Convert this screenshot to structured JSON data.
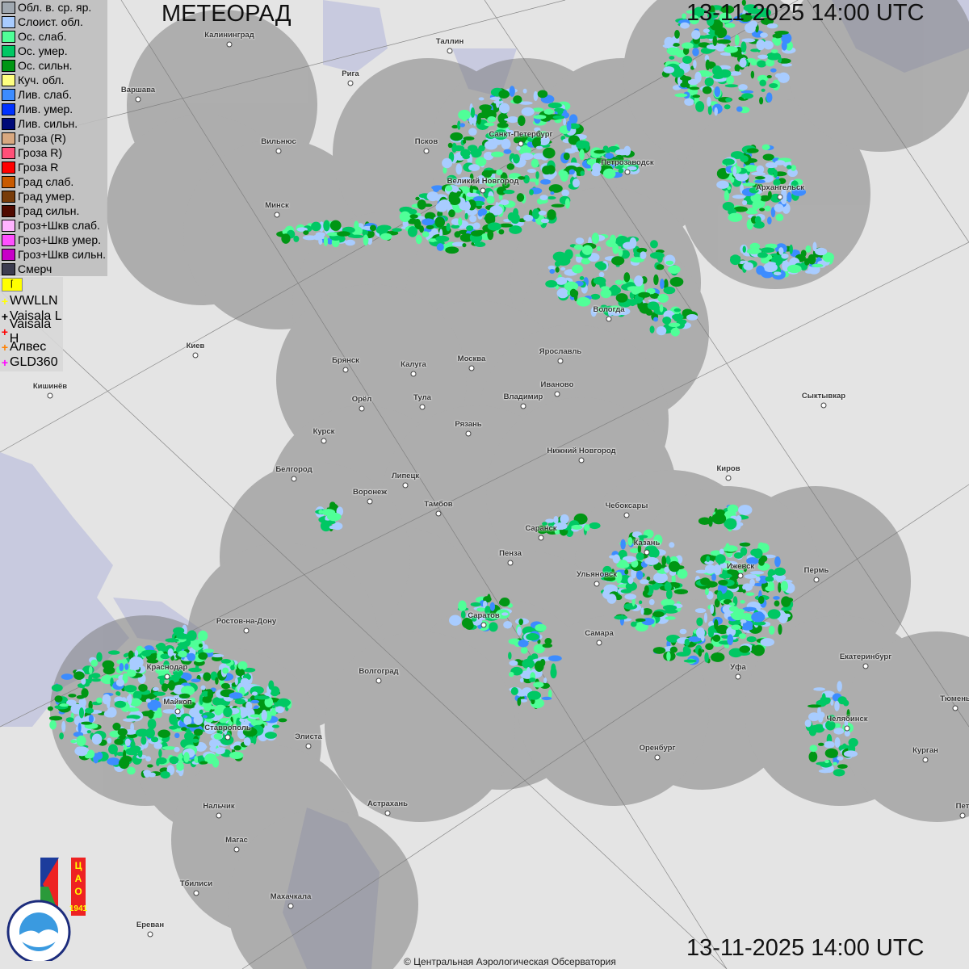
{
  "header": {
    "app_title": "МЕТЕОРАД",
    "timestamp_top": "13-11-2025  14:00 UTC",
    "timestamp_bottom": "13-11-2025  14:00 UTC"
  },
  "legend": [
    {
      "label": "Обл. в. ср. яр.",
      "color": "#a0a8b0"
    },
    {
      "label": "Слоист. обл.",
      "color": "#a8ccff"
    },
    {
      "label": "Ос. слаб.",
      "color": "#50ff98"
    },
    {
      "label": "Ос. умер.",
      "color": "#00c864"
    },
    {
      "label": "Ос. сильн.",
      "color": "#009614"
    },
    {
      "label": "Куч. обл.",
      "color": "#ffff80"
    },
    {
      "label": "Лив. слаб.",
      "color": "#3c8cff"
    },
    {
      "label": "Лив. умер.",
      "color": "#0032ff"
    },
    {
      "label": "Лив. сильн.",
      "color": "#000a78"
    },
    {
      "label": "Гроза (R)",
      "color": "#d8a880"
    },
    {
      "label": "Гроза R)",
      "color": "#ff5078"
    },
    {
      "label": "Гроза R",
      "color": "#ff0000"
    },
    {
      "label": "Град слаб.",
      "color": "#c85a00"
    },
    {
      "label": "Град умер.",
      "color": "#783c0a"
    },
    {
      "label": "Град сильн.",
      "color": "#500a00"
    },
    {
      "label": "Гроз+Шкв слаб.",
      "color": "#ffb4ff"
    },
    {
      "label": "Гроз+Шкв умер.",
      "color": "#ff50ff"
    },
    {
      "label": "Гроз+Шкв сильн.",
      "color": "#c800c8"
    },
    {
      "label": "Смерч",
      "color": "#3c3c50"
    }
  ],
  "lightning_toggle_icon": "flag-icon",
  "lightning_sources": [
    {
      "label": "WWLLN",
      "color": "#ffff00"
    },
    {
      "label": "Vaisala L",
      "color": "#000000"
    },
    {
      "label": "Vaisala H",
      "color": "#ff0000"
    },
    {
      "label": "Алвес",
      "color": "#ff8000"
    },
    {
      "label": "GLD360",
      "color": "#ff00ff"
    }
  ],
  "cities": [
    "Калининград",
    "Таллин",
    "Рига",
    "Варшава",
    "Вильнюс",
    "Псков",
    "Санкт-Петербург",
    "Петрозаводск",
    "Великий Новгород",
    "Архангельск",
    "Минск",
    "Вологда",
    "Киев",
    "Брянск",
    "Калуга",
    "Москва",
    "Ярославль",
    "Иваново",
    "Кишинёв",
    "Орёл",
    "Тула",
    "Владимир",
    "Сыктывкар",
    "Рязань",
    "Курск",
    "Нижний Новгород",
    "Киров",
    "Белгород",
    "Липецк",
    "Воронеж",
    "Тамбов",
    "Чебоксары",
    "Саранск",
    "Казань",
    "Пенза",
    "Ижевск",
    "Пермь",
    "Ульяновск",
    "Саратов",
    "Ростов-на-Дону",
    "Самара",
    "Уфа",
    "Краснодар",
    "Екатеринбург",
    "Волгоград",
    "Тюмень",
    "Майкоп",
    "Челябинск",
    "Ставрополь",
    "Элиста",
    "Оренбург",
    "Курган",
    "Астрахань",
    "Нальчик",
    "Пет",
    "Магас",
    "Тбилиси",
    "Махачкала",
    "Ереван"
  ],
  "logos": {
    "cao": "ЦАО 1941",
    "roshydromet": "РОСГИДРОМЕТ ROSHYDROMET"
  },
  "copyright": "© Центральная Аэрологическая Обсерватория"
}
